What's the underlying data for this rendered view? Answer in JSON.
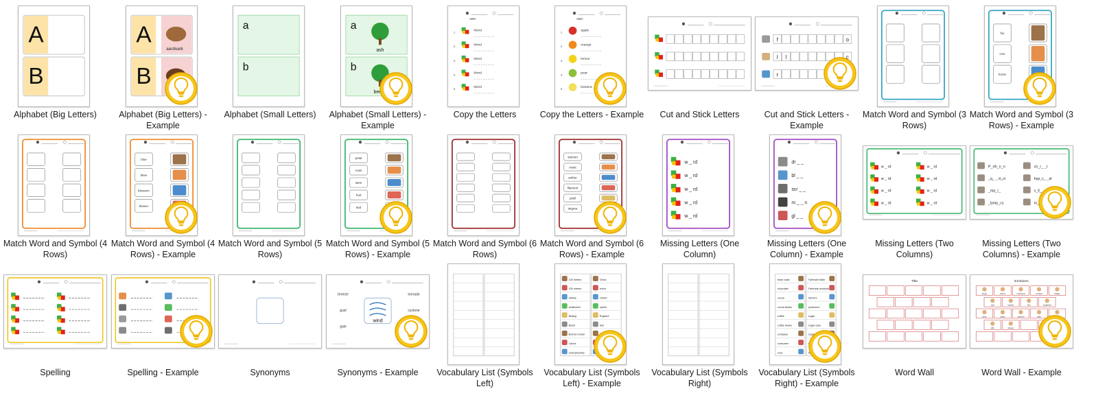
{
  "gallery": {
    "items": [
      {
        "id": "abc-big",
        "label": "Alphabet (Big Letters)",
        "kind": "alphabet-big",
        "example": false,
        "letters": [
          "A",
          "B"
        ],
        "words": []
      },
      {
        "id": "abc-big-ex",
        "label": "Alphabet (Big Letters) - Example",
        "kind": "alphabet-big",
        "example": true,
        "letters": [
          "A",
          "B"
        ],
        "words": [
          "aardvark",
          "bear"
        ]
      },
      {
        "id": "abc-small",
        "label": "Alphabet (Small Letters)",
        "kind": "alphabet-small",
        "example": false,
        "letters": [
          "a",
          "b"
        ],
        "words": []
      },
      {
        "id": "abc-small-ex",
        "label": "Alphabet (Small Letters) - Example",
        "kind": "alphabet-small",
        "example": true,
        "letters": [
          "a",
          "b"
        ],
        "words": [
          "ash",
          "beech"
        ]
      },
      {
        "id": "copy",
        "label": "Copy the Letters",
        "kind": "copy",
        "example": false,
        "words": [
          "Word",
          "Word",
          "Word",
          "Word",
          "Word"
        ]
      },
      {
        "id": "copy-ex",
        "label": "Copy the Letters - Example",
        "kind": "copy",
        "example": true,
        "words": [
          "apple",
          "orange",
          "lemon",
          "pear",
          "banana"
        ]
      },
      {
        "id": "cut",
        "label": "Cut and Stick Letters",
        "kind": "cut",
        "example": false,
        "letters": []
      },
      {
        "id": "cut-ex",
        "label": "Cut and Stick Letters - Example",
        "kind": "cut",
        "example": true,
        "letters": [
          "f",
          "o",
          "l",
          "l",
          "c",
          "r",
          "t",
          "s"
        ]
      },
      {
        "id": "mws3",
        "label": "Match Word and Symbol (3 Rows)",
        "kind": "match",
        "rows": 3,
        "color": "#34a7c1",
        "example": false,
        "words": []
      },
      {
        "id": "mws3-ex",
        "label": "Match Word and Symbol (3 Rows) - Example",
        "kind": "match",
        "rows": 3,
        "color": "#34a7c1",
        "example": true,
        "words": [
          "fox",
          "cow",
          "horse"
        ]
      },
      {
        "id": "mws4",
        "label": "Match Word and Symbol (4 Rows)",
        "kind": "match",
        "rows": 4,
        "color": "#ef8a2a",
        "example": false,
        "words": []
      },
      {
        "id": "mws4-ex",
        "label": "Match Word and Symbol (4 Rows) - Example",
        "kind": "match",
        "rows": 4,
        "color": "#ef8a2a",
        "example": true,
        "words": [
          "blue",
          "blew",
          "blossom",
          "blower"
        ]
      },
      {
        "id": "mws5",
        "label": "Match Word and Symbol (5 Rows)",
        "kind": "match",
        "rows": 5,
        "color": "#3bb56a",
        "example": false,
        "words": []
      },
      {
        "id": "mws5-ex",
        "label": "Match Word and Symbol (5 Rows) - Example",
        "kind": "match",
        "rows": 5,
        "color": "#3bb56a",
        "example": true,
        "words": [
          "petal",
          "roots",
          "stem",
          "fruit",
          "leaf"
        ]
      },
      {
        "id": "mws6",
        "label": "Match Word and Symbol (6 Rows)",
        "kind": "match",
        "rows": 6,
        "color": "#9b2b2b",
        "example": false,
        "words": []
      },
      {
        "id": "mws6-ex",
        "label": "Match Word and Symbol (6 Rows) - Example",
        "kind": "match",
        "rows": 6,
        "color": "#9b2b2b",
        "example": true,
        "words": [
          "stamen",
          "ovule",
          "anther",
          "filament",
          "pistil",
          "stigma"
        ]
      },
      {
        "id": "ml1",
        "label": "Missing Letters (One Column)",
        "kind": "missing1",
        "color": "#a04ac2",
        "example": false,
        "words": [
          "w _ rd",
          "w _ rd",
          "w _ rd",
          "w _ rd",
          "w _ rd"
        ]
      },
      {
        "id": "ml1-ex",
        "label": "Missing Letters (One Column) - Example",
        "kind": "missing1",
        "color": "#a04ac2",
        "example": true,
        "words": [
          "dr _ _",
          "bl _ _",
          "scr _ _",
          "m _ _ n",
          "gl _ _"
        ]
      },
      {
        "id": "ml2",
        "label": "Missing Letters (Two Columns)",
        "kind": "missing2",
        "color": "#3bb56a",
        "example": false,
        "words": [
          "w _ rd",
          "w _ rd",
          "w _ rd",
          "w _ rd",
          "w _ rd",
          "w _ rd",
          "w _ rd",
          "w _ rd"
        ]
      },
      {
        "id": "ml2-ex",
        "label": "Missing Letters (Two Columns) - Example",
        "kind": "missing2",
        "color": "#3bb56a",
        "example": true,
        "words": [
          "P_rth_n_n",
          "ch_r_ _t",
          "_q_ _ d_ct",
          "hyp_c_ _st",
          "_mp_r_",
          "v_ll_",
          "_lymp_cs",
          "m_s_ _m"
        ]
      },
      {
        "id": "spell",
        "label": "Spelling",
        "kind": "spelling",
        "color": "#f0c419",
        "example": false
      },
      {
        "id": "spell-ex",
        "label": "Spelling - Example",
        "kind": "spelling",
        "color": "#f0c419",
        "example": true
      },
      {
        "id": "syn",
        "label": "Synonyms",
        "kind": "synonyms",
        "example": false,
        "words": [],
        "center": ""
      },
      {
        "id": "syn-ex",
        "label": "Synonyms - Example",
        "kind": "synonyms",
        "example": true,
        "words": [
          "breeze",
          "tornado",
          "gust",
          "cyclone",
          "gale",
          "draft"
        ],
        "center": "wind"
      },
      {
        "id": "vocab-l",
        "label": "Vocabulary List (Symbols Left)",
        "kind": "vocab",
        "side": "left",
        "example": false,
        "words": []
      },
      {
        "id": "vocab-l-ex",
        "label": "Vocabulary List (Symbols Left) - Example",
        "kind": "vocab",
        "side": "left",
        "example": true,
        "words": [
          "100 metres",
          "200 metres",
          "athlete",
          "auditorium",
          "Beijing",
          "Brazil",
          "Bronze medal",
          "Canoe",
          "championship",
          "China",
          "event",
          "cricket",
          "cyclist",
          "England",
          "fast",
          "final",
          "football",
          "gold"
        ]
      },
      {
        "id": "vocab-r",
        "label": "Vocabulary List (Symbols Right)",
        "kind": "vocab",
        "side": "right",
        "example": false,
        "words": []
      },
      {
        "id": "vocab-r-ex",
        "label": "Vocabulary List (Symbols Right) - Example",
        "kind": "vocab",
        "side": "right",
        "example": true,
        "words": [
          "bean roast",
          "chocolate",
          "cocoa",
          "cocoa beans",
          "coffee",
          "coffee beans",
          "company",
          "consumer",
          "crop",
          "Fairtrade foundation",
          "Fairtrade Mark",
          "Fairtrade products",
          "farmers",
          "producers",
          "sugar",
          "sugar cane",
          "supply",
          "tea",
          "tea leaves",
          "wages"
        ]
      },
      {
        "id": "wall",
        "label": "Word Wall",
        "kind": "wall",
        "example": false,
        "title": "Title",
        "words": []
      },
      {
        "id": "wall-ex",
        "label": "Word Wall - Example",
        "kind": "wall",
        "example": true,
        "title": "Emotions",
        "words": [
          "angry",
          "bored",
          "confused",
          "excited",
          "happy",
          "sad",
          "scared",
          "shy",
          "surprised",
          "tired",
          "upset",
          "worried",
          "calm",
          "proud",
          "silly",
          "sleepy"
        ]
      }
    ]
  }
}
